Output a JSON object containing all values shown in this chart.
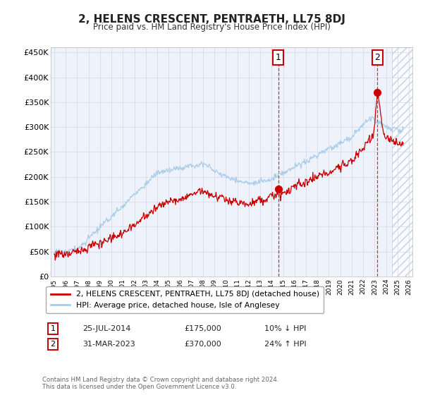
{
  "title": "2, HELENS CRESCENT, PENTRAETH, LL75 8DJ",
  "subtitle": "Price paid vs. HM Land Registry's House Price Index (HPI)",
  "legend_line1": "2, HELENS CRESCENT, PENTRAETH, LL75 8DJ (detached house)",
  "legend_line2": "HPI: Average price, detached house, Isle of Anglesey",
  "annotation1_date": "25-JUL-2014",
  "annotation1_price": "£175,000",
  "annotation1_hpi": "10% ↓ HPI",
  "annotation2_date": "31-MAR-2023",
  "annotation2_price": "£370,000",
  "annotation2_hpi": "24% ↑ HPI",
  "footer": "Contains HM Land Registry data © Crown copyright and database right 2024.\nThis data is licensed under the Open Government Licence v3.0.",
  "hpi_color": "#aacce8",
  "price_color": "#cc0000",
  "sale1_x": 2014.57,
  "sale1_y": 175000,
  "sale2_x": 2023.25,
  "sale2_y": 370000,
  "ylim": [
    0,
    460000
  ],
  "xlim_start": 1994.7,
  "xlim_end": 2026.3,
  "hatch_start": 2024.5,
  "background_color": "#ffffff",
  "plot_bg_color": "#eef2fb",
  "grid_color": "#d0d8e8"
}
